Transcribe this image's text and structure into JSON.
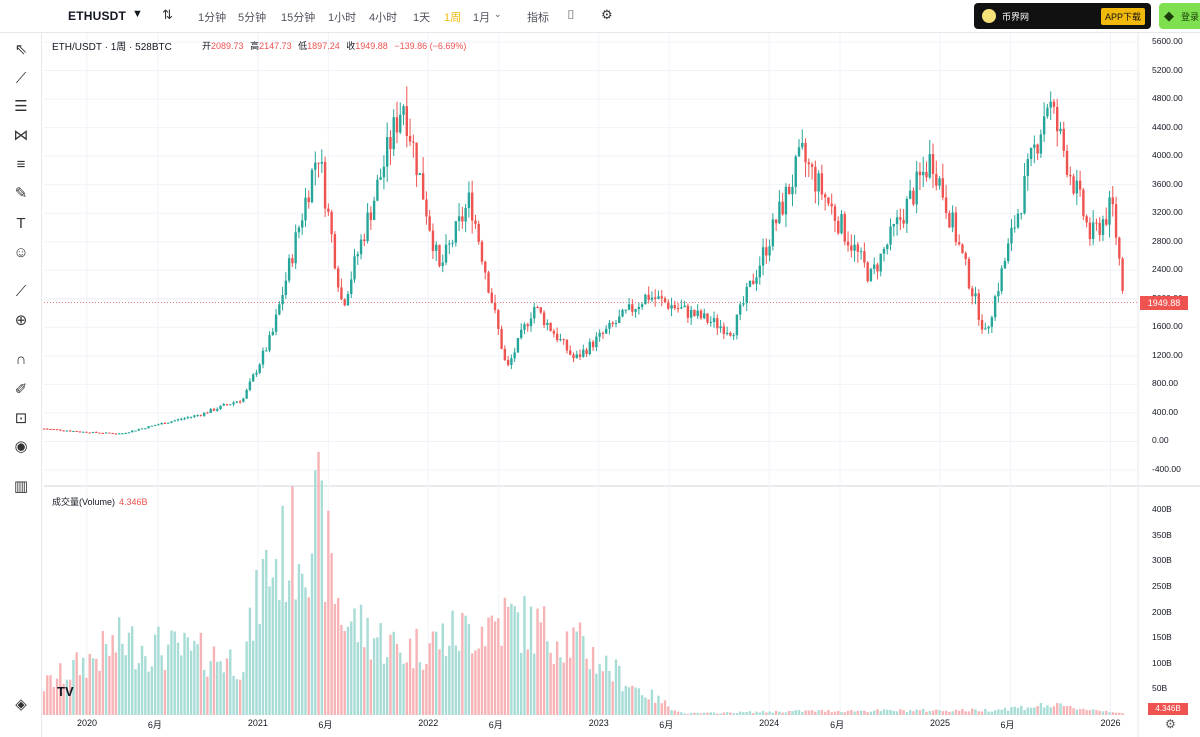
{
  "topbar": {
    "symbol": "ETHUSDT",
    "intervals": [
      "1分钟",
      "5分钟",
      "15分钟",
      "1小时",
      "4小时",
      "1天",
      "1周",
      "1月"
    ],
    "active_interval": "1周",
    "indicators_label": "指标",
    "brand_name": "币界网",
    "brand_button": "APP下载",
    "green_button_label": "登录"
  },
  "legend": {
    "title": "ETH/USDT · 1周 · 528BTC",
    "open_label": "开",
    "open": "2089.73",
    "high_label": "高",
    "high": "2147.73",
    "low_label": "低",
    "low": "1897.24",
    "close_label": "收",
    "close": "1949.88",
    "change": "−139.86 (−6.69%)"
  },
  "volume": {
    "title": "成交量(Volume)",
    "value": "4.346B"
  },
  "price_axis": [
    "5600.00",
    "5200.00",
    "4800.00",
    "4400.00",
    "4000.00",
    "3600.00",
    "3200.00",
    "2800.00",
    "2400.00",
    "2000.00",
    "1600.00",
    "1200.00",
    "800.00",
    "400.00",
    "0.00",
    "-400.00"
  ],
  "volume_axis": [
    "400B",
    "350B",
    "300B",
    "250B",
    "200B",
    "150B",
    "100B",
    "50B"
  ],
  "current_price_tag": "1949.88",
  "current_volume_tag": "4.346B",
  "time_axis": [
    "2020",
    "6月",
    "2021",
    "6月",
    "2022",
    "6月",
    "2023",
    "6月",
    "2024",
    "6月",
    "2025",
    "6月",
    "2026"
  ],
  "colors": {
    "up": "#26a69a",
    "down": "#ef5350",
    "up_vol": "#a8dcd6",
    "down_vol": "#f7b3b6",
    "accent": "#f0b90b"
  },
  "chart_data": {
    "type": "candlestick",
    "title": "ETH/USDT · 1周 · 528BTC",
    "x_range": [
      "2019-10",
      "2026-03"
    ],
    "price_range": [
      -400,
      5600
    ],
    "volume_range": [
      0,
      400
    ],
    "volume_unit": "B",
    "price_path": [
      [
        "2019-10-01",
        180
      ],
      [
        "2020-01-01",
        130
      ],
      [
        "2020-03-15",
        110
      ],
      [
        "2020-06-01",
        240
      ],
      [
        "2020-09-01",
        380
      ],
      [
        "2020-12-01",
        600
      ],
      [
        "2021-02-01",
        1500
      ],
      [
        "2021-05-10",
        4100
      ],
      [
        "2021-07-01",
        1900
      ],
      [
        "2021-11-08",
        4800
      ],
      [
        "2022-01-25",
        2400
      ],
      [
        "2022-04-01",
        3400
      ],
      [
        "2022-06-18",
        1000
      ],
      [
        "2022-08-15",
        1900
      ],
      [
        "2022-11-10",
        1150
      ],
      [
        "2023-04-15",
        2050
      ],
      [
        "2023-10-15",
        1550
      ],
      [
        "2024-03-11",
        4000
      ],
      [
        "2024-08-05",
        2300
      ],
      [
        "2024-12-15",
        4000
      ],
      [
        "2025-04-08",
        1500
      ],
      [
        "2025-08-20",
        4800
      ],
      [
        "2025-11-20",
        2850
      ],
      [
        "2026-01-05",
        3300
      ],
      [
        "2026-02-01",
        1949.88
      ]
    ],
    "volume_path": [
      [
        "2019-10-01",
        60
      ],
      [
        "2020-03-15",
        150
      ],
      [
        "2020-12-01",
        110
      ],
      [
        "2021-01-15",
        290
      ],
      [
        "2021-05-10",
        400
      ],
      [
        "2021-07-01",
        200
      ],
      [
        "2021-11-08",
        130
      ],
      [
        "2022-06-18",
        200
      ],
      [
        "2022-11-10",
        150
      ],
      [
        "2023-03-15",
        60
      ],
      [
        "2023-07-01",
        3
      ],
      [
        "2024-03-11",
        8
      ],
      [
        "2025-04-08",
        10
      ],
      [
        "2025-08-20",
        20
      ],
      [
        "2026-02-01",
        4.35
      ]
    ],
    "last": {
      "open": 2089.73,
      "high": 2147.73,
      "low": 1897.24,
      "close": 1949.88,
      "volume_b": 4.346
    }
  }
}
